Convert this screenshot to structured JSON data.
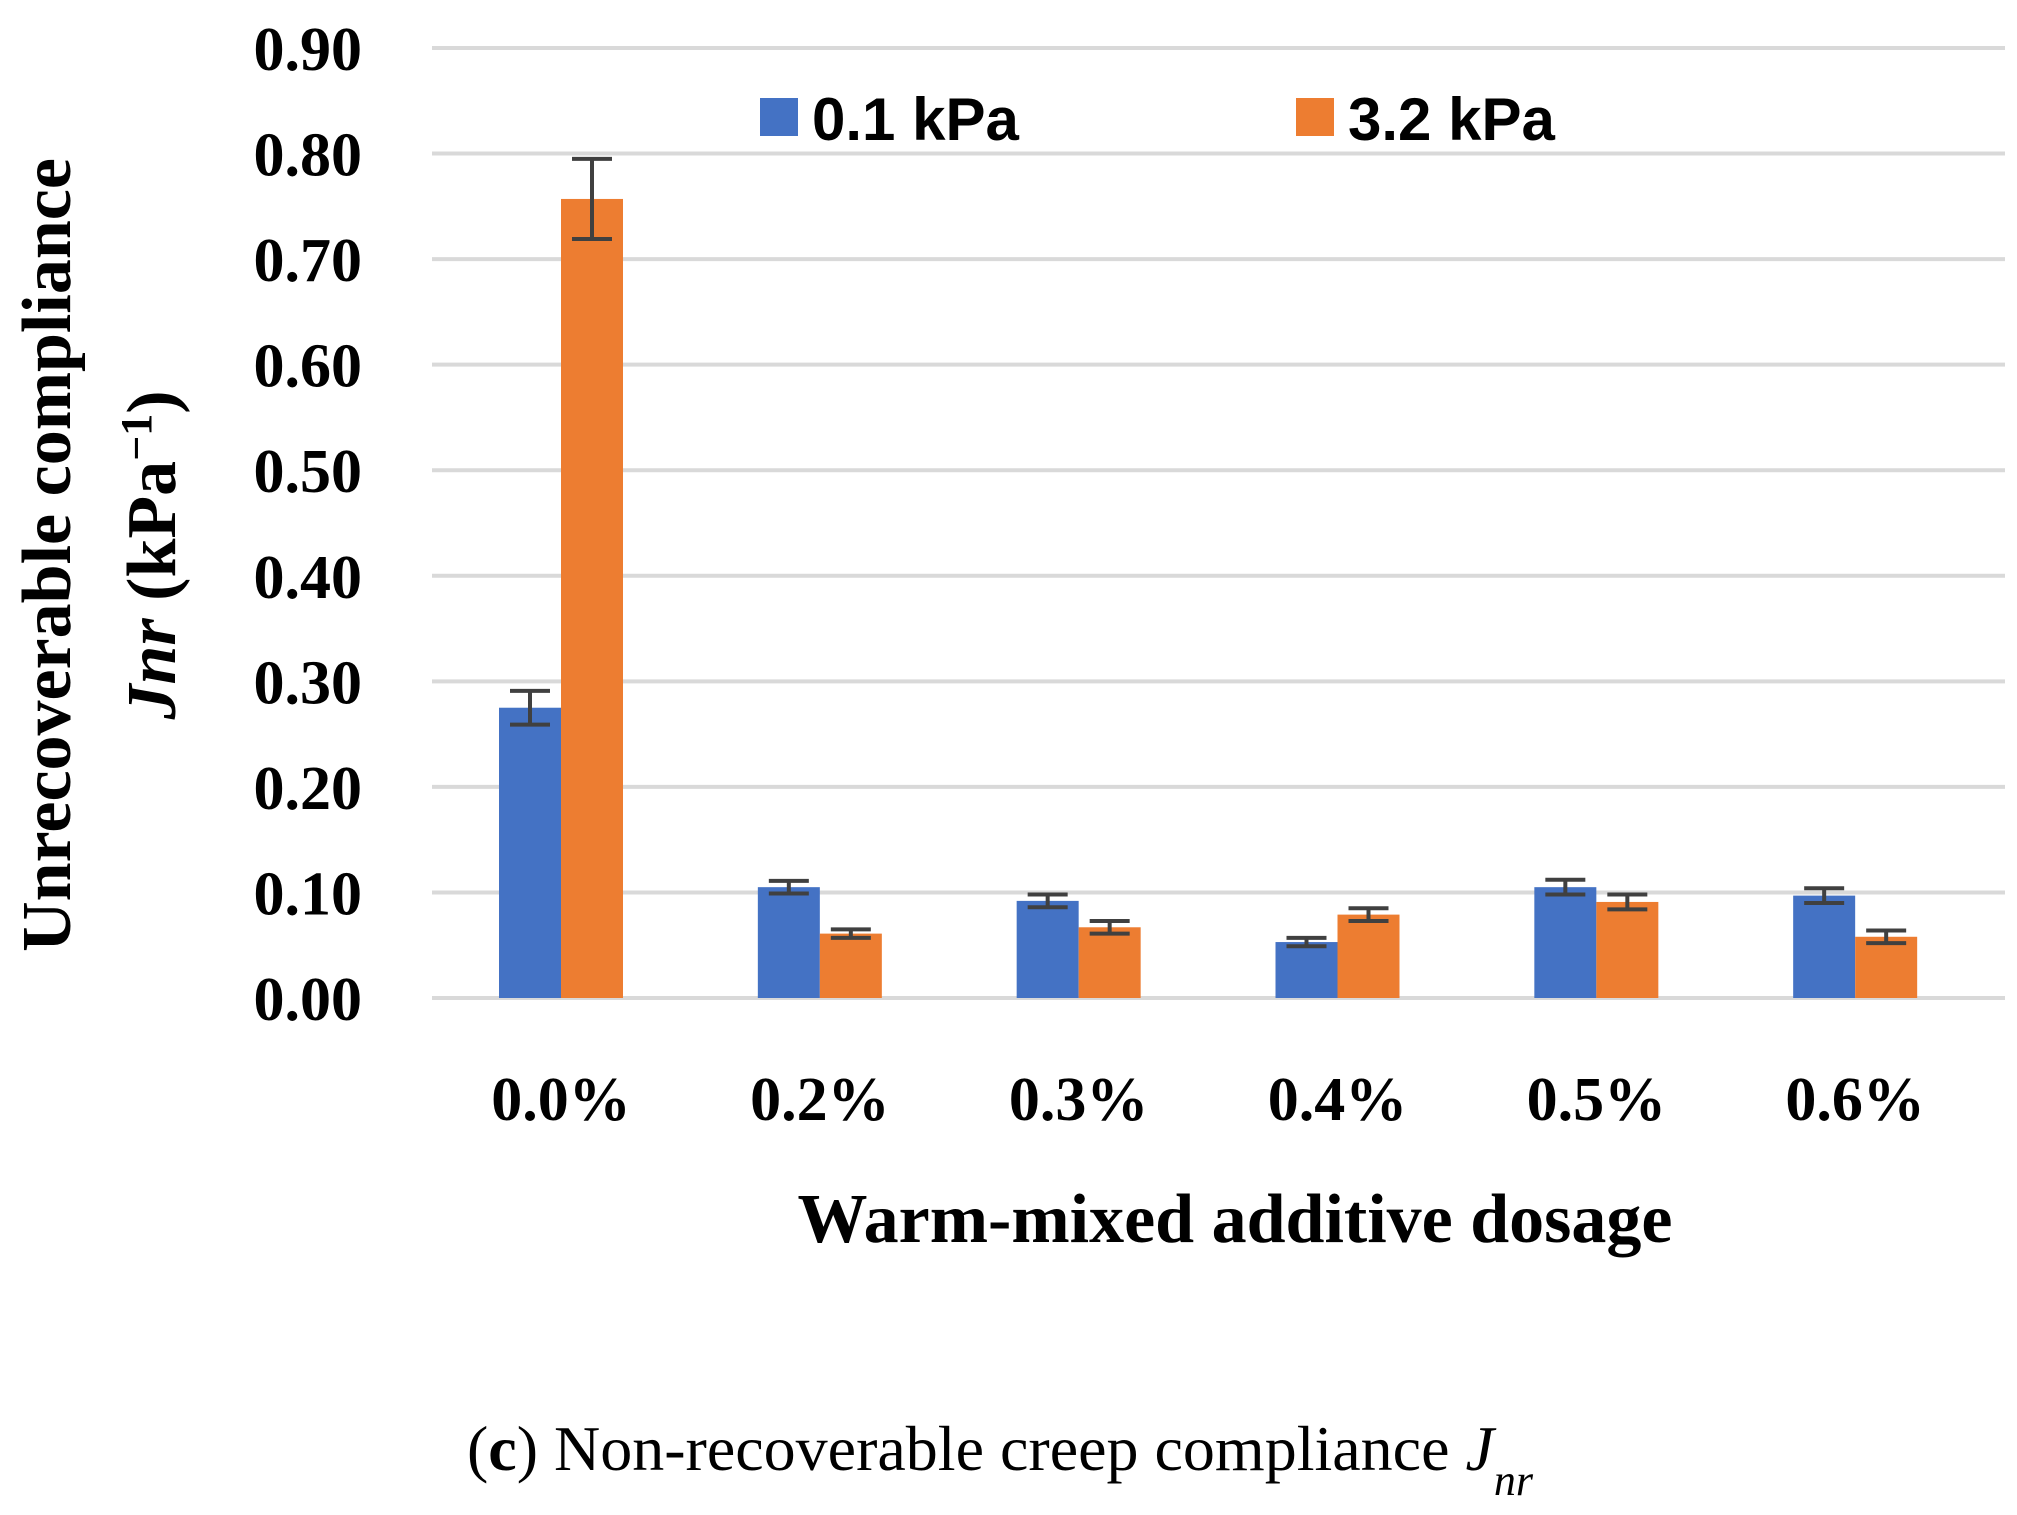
{
  "chart_data": {
    "type": "bar",
    "ylabel_line1": "Unrecoverable compliance",
    "ylabel_line2_sym": "Jnr",
    "ylabel_line2_unit": "(kPa",
    "ylabel_line2_exp": "−1",
    "ylabel_line2_close": ")",
    "xlabel": "Warm-mixed additive dosage",
    "categories": [
      "0.0%",
      "0.2%",
      "0.3%",
      "0.4%",
      "0.5%",
      "0.6%"
    ],
    "yticks": [
      "0.00",
      "0.10",
      "0.20",
      "0.30",
      "0.40",
      "0.50",
      "0.60",
      "0.70",
      "0.80",
      "0.90"
    ],
    "ylim": [
      0,
      0.9
    ],
    "grid": true,
    "legend_position": "top",
    "series": [
      {
        "name": "0.1 kPa",
        "color": "#4472C4",
        "values": [
          0.275,
          0.105,
          0.092,
          0.053,
          0.105,
          0.097
        ],
        "errors": [
          0.016,
          0.006,
          0.006,
          0.004,
          0.007,
          0.007
        ]
      },
      {
        "name": "3.2 kPa",
        "color": "#ED7D31",
        "values": [
          0.757,
          0.061,
          0.067,
          0.079,
          0.091,
          0.058
        ],
        "errors": [
          0.038,
          0.004,
          0.006,
          0.006,
          0.007,
          0.006
        ]
      }
    ],
    "error_bar_color": "#404040",
    "grid_color": "#d9d9d9"
  },
  "caption": {
    "label": "c",
    "text": " Non-recoverable creep compliance ",
    "sym_main": "J",
    "sym_sub": "nr"
  }
}
